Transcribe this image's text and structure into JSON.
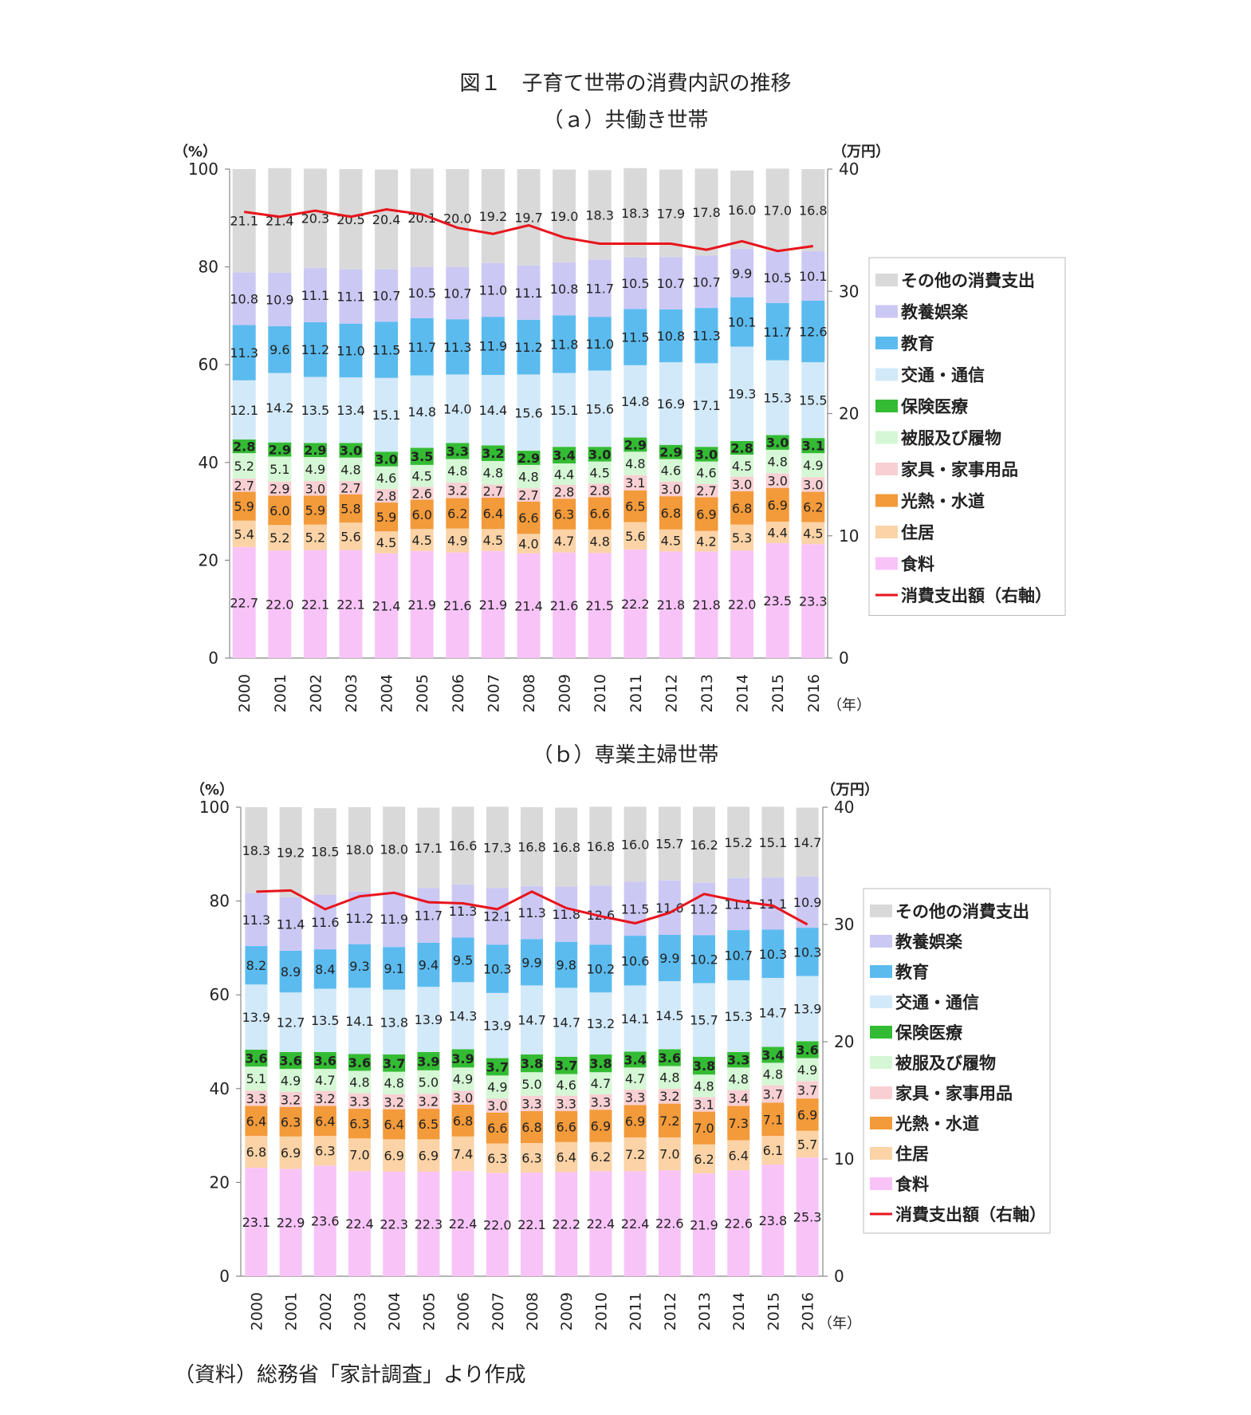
{
  "figure_title": "図１　子育て世帯の消費内訳の推移",
  "source_note": "（資料）総務省「家計調査」より作成",
  "colors": {
    "その他の消費支出": "#d9d9d9",
    "教養娯楽": "#ccc8f4",
    "教育": "#5bbbef",
    "交通・通信": "#d2e9f9",
    "保険医療": "#33bb33",
    "被服及び履物": "#d5f7d5",
    "家具・家事用品": "#f8d0d3",
    "光熱・水道": "#f39a3a",
    "住居": "#fbd3a6",
    "食料": "#f8c4f8",
    "line": "#e8141c"
  },
  "chart_data": [
    {
      "type": "bar",
      "title": "（ａ）共働き世帯",
      "y_unit_left": "（%）",
      "y_unit_right": "（万円）",
      "x_unit": "（年）",
      "ylim_left": [
        0,
        100
      ],
      "ylim_right": [
        0,
        40
      ],
      "yticks_left": [
        0,
        20,
        40,
        60,
        80,
        100
      ],
      "yticks_right": [
        0,
        10,
        20,
        30,
        40
      ],
      "categories": [
        "2000",
        "2001",
        "2002",
        "2003",
        "2004",
        "2005",
        "2006",
        "2007",
        "2008",
        "2009",
        "2010",
        "2011",
        "2012",
        "2013",
        "2014",
        "2015",
        "2016"
      ],
      "series": [
        {
          "name": "食料",
          "values": [
            22.7,
            22.0,
            22.1,
            22.1,
            21.4,
            21.9,
            21.6,
            21.9,
            21.4,
            21.6,
            21.5,
            22.2,
            21.8,
            21.8,
            22.0,
            23.5,
            23.3
          ]
        },
        {
          "name": "住居",
          "values": [
            5.4,
            5.2,
            5.2,
            5.6,
            4.5,
            4.5,
            4.9,
            4.5,
            4.0,
            4.7,
            4.8,
            5.6,
            4.5,
            4.2,
            5.3,
            4.4,
            4.5
          ]
        },
        {
          "name": "光熱・水道",
          "values": [
            5.9,
            6.0,
            5.9,
            5.8,
            5.9,
            6.0,
            6.2,
            6.4,
            6.6,
            6.3,
            6.6,
            6.5,
            6.8,
            6.9,
            6.8,
            6.9,
            6.2
          ]
        },
        {
          "name": "家具・家事用品",
          "values": [
            2.7,
            2.9,
            3.0,
            2.7,
            2.8,
            2.6,
            3.2,
            2.7,
            2.7,
            2.8,
            2.8,
            3.1,
            3.0,
            2.7,
            3.0,
            3.0,
            3.0
          ]
        },
        {
          "name": "被服及び履物",
          "values": [
            5.2,
            5.1,
            4.9,
            4.8,
            4.6,
            4.5,
            4.8,
            4.8,
            4.8,
            4.4,
            4.5,
            4.8,
            4.6,
            4.6,
            4.5,
            4.8,
            4.9
          ]
        },
        {
          "name": "保険医療",
          "values": [
            2.8,
            2.9,
            2.9,
            3.0,
            3.0,
            3.5,
            3.3,
            3.2,
            2.9,
            3.4,
            3.0,
            2.9,
            2.9,
            3.0,
            2.8,
            3.0,
            3.1
          ]
        },
        {
          "name": "交通・通信",
          "values": [
            12.1,
            14.2,
            13.5,
            13.4,
            15.1,
            14.8,
            14.0,
            14.4,
            15.6,
            15.1,
            15.6,
            14.8,
            16.9,
            17.1,
            19.3,
            15.3,
            15.5
          ]
        },
        {
          "name": "教育",
          "values": [
            11.3,
            9.6,
            11.2,
            11.0,
            11.5,
            11.7,
            11.3,
            11.9,
            11.2,
            11.8,
            11.0,
            11.5,
            10.8,
            11.3,
            10.1,
            11.7,
            12.6
          ]
        },
        {
          "name": "教養娯楽",
          "values": [
            10.8,
            10.9,
            11.1,
            11.1,
            10.7,
            10.5,
            10.7,
            11.0,
            11.1,
            10.8,
            11.7,
            10.5,
            10.7,
            10.7,
            9.9,
            10.5,
            10.1
          ]
        },
        {
          "name": "その他の消費支出",
          "values": [
            21.1,
            21.4,
            20.3,
            20.5,
            20.4,
            20.1,
            20.0,
            19.2,
            19.7,
            19.0,
            18.3,
            18.3,
            17.9,
            17.8,
            16.0,
            17.0,
            16.8
          ]
        }
      ],
      "line": {
        "name": "消費支出額（右軸）",
        "values": [
          36.5,
          36.1,
          36.6,
          36.1,
          36.7,
          36.3,
          35.2,
          34.7,
          35.4,
          34.4,
          33.9,
          33.9,
          33.9,
          33.4,
          34.1,
          33.3,
          33.7
        ]
      },
      "legend_placement": "right"
    },
    {
      "type": "bar",
      "title": "（ｂ）専業主婦世帯",
      "y_unit_left": "（%）",
      "y_unit_right": "（万円）",
      "x_unit": "（年）",
      "ylim_left": [
        0,
        100
      ],
      "ylim_right": [
        0,
        40
      ],
      "yticks_left": [
        0,
        20,
        40,
        60,
        80,
        100
      ],
      "yticks_right": [
        0,
        10,
        20,
        30,
        40
      ],
      "categories": [
        "2000",
        "2001",
        "2002",
        "2003",
        "2004",
        "2005",
        "2006",
        "2007",
        "2008",
        "2009",
        "2010",
        "2011",
        "2012",
        "2013",
        "2014",
        "2015",
        "2016"
      ],
      "series": [
        {
          "name": "食料",
          "values": [
            23.1,
            22.9,
            23.6,
            22.4,
            22.3,
            22.3,
            22.4,
            22.0,
            22.1,
            22.2,
            22.4,
            22.4,
            22.6,
            21.9,
            22.6,
            23.8,
            25.3
          ]
        },
        {
          "name": "住居",
          "values": [
            6.8,
            6.9,
            6.3,
            7.0,
            6.9,
            6.9,
            7.4,
            6.3,
            6.3,
            6.4,
            6.2,
            7.2,
            7.0,
            6.2,
            6.4,
            6.1,
            5.7
          ]
        },
        {
          "name": "光熱・水道",
          "values": [
            6.4,
            6.3,
            6.4,
            6.3,
            6.4,
            6.5,
            6.8,
            6.6,
            6.8,
            6.6,
            6.9,
            6.9,
            7.2,
            7.0,
            7.3,
            7.1,
            6.9
          ]
        },
        {
          "name": "家具・家事用品",
          "values": [
            3.3,
            3.2,
            3.2,
            3.3,
            3.2,
            3.2,
            3.0,
            3.0,
            3.3,
            3.3,
            3.3,
            3.3,
            3.2,
            3.1,
            3.4,
            3.7,
            3.7
          ]
        },
        {
          "name": "被服及び履物",
          "values": [
            5.1,
            4.9,
            4.7,
            4.8,
            4.8,
            5.0,
            4.9,
            4.9,
            5.0,
            4.6,
            4.7,
            4.7,
            4.8,
            4.8,
            4.8,
            4.8,
            4.9
          ]
        },
        {
          "name": "保険医療",
          "values": [
            3.6,
            3.6,
            3.6,
            3.6,
            3.7,
            3.9,
            3.9,
            3.7,
            3.8,
            3.7,
            3.8,
            3.4,
            3.6,
            3.8,
            3.3,
            3.4,
            3.6
          ]
        },
        {
          "name": "交通・通信",
          "values": [
            13.9,
            12.7,
            13.5,
            14.1,
            13.8,
            13.9,
            14.3,
            13.9,
            14.7,
            14.7,
            13.2,
            14.1,
            14.5,
            15.7,
            15.3,
            14.7,
            13.9
          ]
        },
        {
          "name": "教育",
          "values": [
            8.2,
            8.9,
            8.4,
            9.3,
            9.1,
            9.4,
            9.5,
            10.3,
            9.9,
            9.8,
            10.2,
            10.6,
            9.9,
            10.2,
            10.7,
            10.3,
            10.3
          ]
        },
        {
          "name": "教養娯楽",
          "values": [
            11.3,
            11.4,
            11.6,
            11.2,
            11.9,
            11.7,
            11.3,
            12.1,
            11.3,
            11.8,
            12.6,
            11.5,
            11.6,
            11.2,
            11.1,
            11.1,
            10.9
          ]
        },
        {
          "name": "その他の消費支出",
          "values": [
            18.3,
            19.2,
            18.5,
            18.0,
            18.0,
            17.1,
            16.6,
            17.3,
            16.8,
            16.8,
            16.8,
            16.0,
            15.7,
            16.2,
            15.2,
            15.1,
            14.7
          ]
        }
      ],
      "line": {
        "name": "消費支出額（右軸）",
        "values": [
          32.8,
          32.9,
          31.3,
          32.4,
          32.7,
          31.9,
          31.8,
          31.3,
          32.8,
          31.4,
          30.7,
          30.1,
          31.0,
          32.6,
          32.0,
          31.6,
          30.0
        ]
      },
      "legend_placement": "right"
    }
  ]
}
